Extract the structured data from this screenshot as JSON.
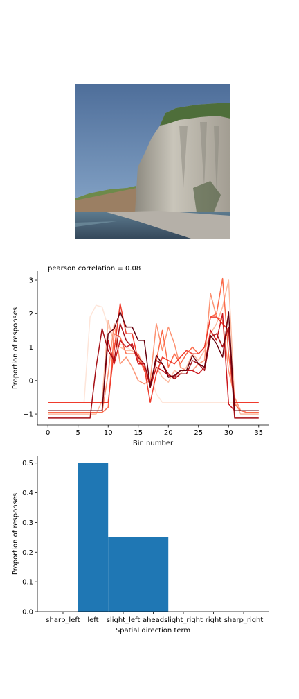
{
  "image": {
    "description_icon": "coastal-cliff-photo-icon"
  },
  "line_chart_annotation": "pearson correlation = 0.08",
  "chart_data": [
    {
      "type": "line",
      "title": "",
      "annotation": "pearson correlation = 0.08",
      "xlabel": "Bin number",
      "ylabel": "Proportion of responses",
      "xlim": [
        -1.75,
        36.75
      ],
      "ylim": [
        -1.33,
        3.27
      ],
      "xticks": [
        0,
        5,
        10,
        15,
        20,
        25,
        30,
        35
      ],
      "yticks": [
        -1,
        0,
        1,
        2,
        3
      ],
      "x": [
        0,
        1,
        2,
        3,
        4,
        5,
        6,
        7,
        8,
        9,
        10,
        11,
        12,
        13,
        14,
        15,
        16,
        17,
        18,
        19,
        20,
        21,
        22,
        23,
        24,
        25,
        26,
        27,
        28,
        29,
        30,
        31,
        32,
        33,
        34,
        35
      ],
      "grid": false,
      "series": [
        {
          "color": "#fee5d9",
          "values": [
            -0.65,
            -0.65,
            -0.65,
            -0.65,
            -0.65,
            -0.65,
            -0.65,
            1.9,
            2.25,
            2.2,
            1.6,
            1.2,
            1.1,
            1.0,
            0.9,
            0.8,
            0.5,
            0.2,
            -0.4,
            -0.65,
            -0.65,
            -0.65,
            -0.65,
            -0.65,
            -0.65,
            -0.65,
            -0.65,
            -0.65,
            -0.65,
            -0.65,
            -0.65,
            -0.65,
            -0.65,
            -0.65,
            -0.65,
            -0.65
          ]
        },
        {
          "color": "#fcbba1",
          "values": [
            -1.0,
            -1.0,
            -1.0,
            -1.0,
            -1.0,
            -1.0,
            -1.0,
            -1.0,
            -1.0,
            -0.6,
            1.8,
            1.1,
            1.0,
            0.9,
            0.9,
            0.7,
            0.3,
            -0.1,
            0.4,
            0.1,
            -0.05,
            0.3,
            0.2,
            0.4,
            0.8,
            0.6,
            0.9,
            1.4,
            1.7,
            2.2,
            3.0,
            -0.6,
            -1.0,
            -1.0,
            -1.0,
            -1.0
          ]
        },
        {
          "color": "#fc9272",
          "values": [
            -0.95,
            -0.95,
            -0.95,
            -0.95,
            -0.95,
            -0.95,
            -0.95,
            -0.95,
            -0.95,
            -0.95,
            0.2,
            1.7,
            0.5,
            0.7,
            0.4,
            0.0,
            -0.1,
            0.0,
            1.7,
            0.9,
            1.6,
            1.1,
            0.4,
            0.3,
            0.3,
            0.5,
            0.6,
            2.6,
            1.9,
            1.8,
            0.3,
            -0.5,
            -0.9,
            -0.95,
            -0.95,
            -0.95
          ]
        },
        {
          "color": "#fb6a4a",
          "values": [
            -0.95,
            -0.95,
            -0.95,
            -0.95,
            -0.95,
            -0.95,
            -0.95,
            -0.95,
            -0.95,
            -0.95,
            -0.8,
            1.4,
            1.3,
            0.8,
            0.8,
            0.8,
            0.3,
            -0.1,
            0.6,
            1.5,
            0.4,
            0.8,
            0.5,
            0.8,
            1.0,
            0.8,
            1.0,
            1.9,
            2.0,
            3.05,
            0.8,
            -0.7,
            -0.9,
            -0.95,
            -0.95,
            -0.95
          ]
        },
        {
          "color": "#ef3b2c",
          "values": [
            -0.65,
            -0.65,
            -0.65,
            -0.65,
            -0.65,
            -0.65,
            -0.65,
            -0.65,
            -0.65,
            -0.65,
            -0.65,
            0.9,
            2.3,
            1.4,
            1.4,
            0.6,
            0.4,
            -0.65,
            0.2,
            0.7,
            0.6,
            0.5,
            0.7,
            0.9,
            0.8,
            0.8,
            1.0,
            1.9,
            1.9,
            1.7,
            1.5,
            -0.65,
            -0.65,
            -0.65,
            -0.65,
            -0.65
          ]
        },
        {
          "color": "#cb181d",
          "values": [
            -0.9,
            -0.9,
            -0.9,
            -0.9,
            -0.9,
            -0.9,
            -0.9,
            -0.9,
            -0.9,
            -0.9,
            1.2,
            0.5,
            1.2,
            1.0,
            1.1,
            0.5,
            0.5,
            -0.2,
            0.4,
            0.3,
            0.15,
            0.1,
            0.3,
            0.3,
            0.3,
            0.2,
            0.4,
            1.5,
            1.2,
            2.0,
            -0.7,
            -0.9,
            -0.9,
            -0.9,
            -0.9,
            -0.9
          ]
        },
        {
          "color": "#a50f15",
          "values": [
            -1.12,
            -1.12,
            -1.12,
            -1.12,
            -1.12,
            -1.12,
            -1.12,
            -1.12,
            0.4,
            1.55,
            0.9,
            0.6,
            1.7,
            1.2,
            1.0,
            0.7,
            0.5,
            -0.1,
            0.6,
            0.5,
            0.2,
            0.05,
            0.2,
            0.2,
            0.6,
            0.5,
            0.3,
            1.3,
            1.4,
            1.0,
            1.6,
            -1.12,
            -1.12,
            -1.12,
            -1.12,
            -1.12
          ]
        },
        {
          "color": "#67000d",
          "values": [
            -0.9,
            -0.9,
            -0.9,
            -0.9,
            -0.9,
            -0.9,
            -0.9,
            -0.9,
            -0.9,
            -0.9,
            1.4,
            1.55,
            2.05,
            1.6,
            1.6,
            1.2,
            1.2,
            -0.2,
            0.75,
            0.5,
            0.1,
            0.15,
            0.3,
            0.3,
            0.75,
            0.5,
            0.4,
            1.35,
            1.1,
            0.7,
            2.05,
            -0.9,
            -0.9,
            -0.9,
            -0.9,
            -0.9
          ]
        }
      ]
    },
    {
      "type": "bar",
      "title": "",
      "xlabel": "Spatial direction term",
      "ylabel": "Proportion of responses",
      "categories": [
        "sharp_left",
        "left",
        "slight_left",
        "ahead",
        "slight_right",
        "right",
        "sharp_right"
      ],
      "values": [
        0.0,
        0.5,
        0.25,
        0.25,
        0.0,
        0.0,
        0.0
      ],
      "color": "#1f77b4",
      "ylim": [
        0,
        0.525
      ],
      "yticks": [
        0.0,
        0.1,
        0.2,
        0.3,
        0.4,
        0.5
      ],
      "ytick_labels": [
        "0.0",
        "0.1",
        "0.2",
        "0.3",
        "0.4",
        "0.5"
      ],
      "grid": false
    }
  ]
}
